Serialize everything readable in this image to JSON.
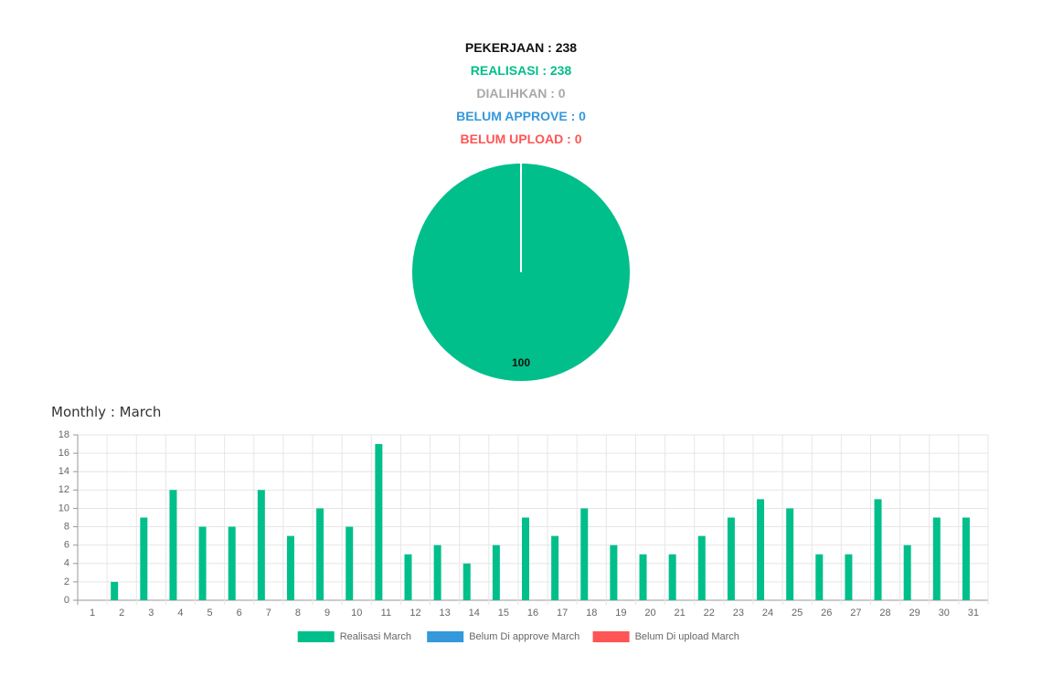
{
  "summary": {
    "pekerjaan": "PEKERJAAN : 238",
    "realisasi": "REALISASI : 238",
    "dialihkan": "DIALIHKAN : 0",
    "belum_approve": "BELUM APPROVE : 0",
    "belum_upload": "BELUM UPLOAD : 0"
  },
  "colors": {
    "pekerjaan": "#111111",
    "realisasi": "#00bf8a",
    "dialihkan": "#a9a9a9",
    "belum_approve": "#3498db",
    "belum_upload": "#ff5555",
    "grid": "#e6e6e6",
    "axis": "#999999",
    "tick": "#666666"
  },
  "monthly": {
    "title": "Monthly : March"
  },
  "chart_data": [
    {
      "type": "pie",
      "categories": [
        "Realisasi",
        "Dialihkan",
        "Belum Approve",
        "Belum Upload"
      ],
      "values": [
        100,
        0,
        0,
        0
      ],
      "slice_labels": [
        "100"
      ],
      "colors": [
        "#00bf8a",
        "#a9a9a9",
        "#3498db",
        "#ff5555"
      ]
    },
    {
      "type": "bar",
      "title": "",
      "xlabel": "",
      "ylabel": "",
      "categories": [
        "1",
        "2",
        "3",
        "4",
        "5",
        "6",
        "7",
        "8",
        "9",
        "10",
        "11",
        "12",
        "13",
        "14",
        "15",
        "16",
        "17",
        "18",
        "19",
        "20",
        "21",
        "22",
        "23",
        "24",
        "25",
        "26",
        "27",
        "28",
        "29",
        "30",
        "31"
      ],
      "series": [
        {
          "name": "Realisasi March",
          "color": "#00bf8a",
          "values": [
            0,
            2,
            9,
            12,
            8,
            8,
            12,
            7,
            10,
            8,
            17,
            5,
            6,
            4,
            6,
            9,
            7,
            10,
            6,
            5,
            5,
            7,
            9,
            11,
            10,
            5,
            5,
            11,
            6,
            9,
            9
          ]
        },
        {
          "name": "Belum Di approve March",
          "color": "#3498db",
          "values": [
            0,
            0,
            0,
            0,
            0,
            0,
            0,
            0,
            0,
            0,
            0,
            0,
            0,
            0,
            0,
            0,
            0,
            0,
            0,
            0,
            0,
            0,
            0,
            0,
            0,
            0,
            0,
            0,
            0,
            0,
            0
          ]
        },
        {
          "name": "Belum Di upload March",
          "color": "#ff5555",
          "values": [
            0,
            0,
            0,
            0,
            0,
            0,
            0,
            0,
            0,
            0,
            0,
            0,
            0,
            0,
            0,
            0,
            0,
            0,
            0,
            0,
            0,
            0,
            0,
            0,
            0,
            0,
            0,
            0,
            0,
            0,
            0
          ]
        }
      ],
      "ylim": [
        0,
        18
      ],
      "yticks": [
        0,
        2,
        4,
        6,
        8,
        10,
        12,
        14,
        16,
        18
      ],
      "grid": true,
      "legend_position": "bottom"
    }
  ]
}
